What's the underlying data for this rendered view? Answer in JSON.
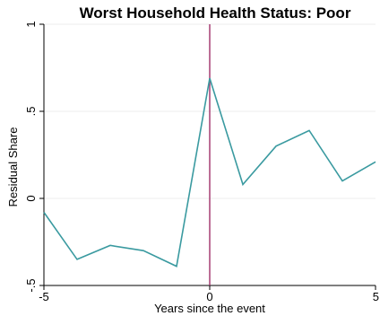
{
  "chart_data": {
    "type": "line",
    "title": "Worst Household Health Status: Poor",
    "xlabel": "Years since the event",
    "ylabel": "Residual Share",
    "xlim": [
      -5,
      5
    ],
    "ylim": [
      -0.5,
      1
    ],
    "x_ticks": [
      -5,
      0,
      5
    ],
    "x_tick_labels": [
      "-5",
      "0",
      "5"
    ],
    "y_ticks": [
      -0.5,
      0,
      0.5,
      1
    ],
    "y_tick_labels": [
      "-.5",
      "0",
      ".5",
      "1"
    ],
    "grid": "horizontal",
    "reference_line": {
      "x": 0,
      "color": "#a0306a"
    },
    "series": [
      {
        "color": "#3a9aa0",
        "x": [
          -5,
          -4,
          -3,
          -2,
          -1,
          0,
          1,
          2,
          3,
          4,
          5
        ],
        "values": [
          -0.08,
          -0.35,
          -0.27,
          -0.3,
          -0.39,
          0.69,
          0.08,
          0.3,
          0.39,
          0.1,
          0.21
        ]
      }
    ]
  }
}
